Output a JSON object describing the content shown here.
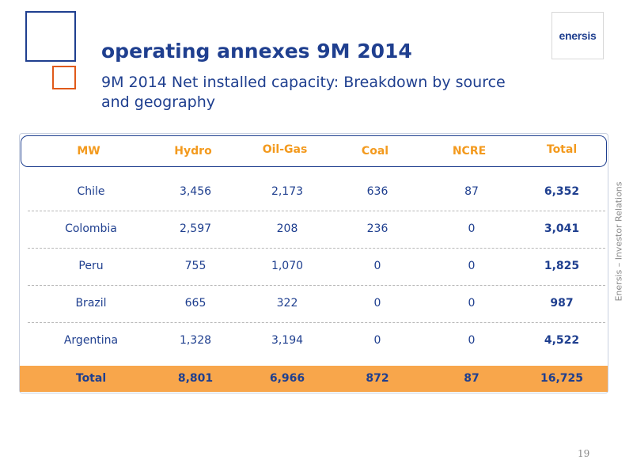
{
  "logo": {
    "text": "enersis"
  },
  "header": {
    "title": "operating annexes 9M 2014",
    "subtitle": "9M 2014 Net installed capacity: Breakdown by source and geography"
  },
  "table": {
    "columns": [
      "MW",
      "Hydro",
      "Oil-Gas",
      "Coal",
      "NCRE",
      "Total"
    ],
    "rows": [
      [
        "Chile",
        "3,456",
        "2,173",
        "636",
        "87",
        "6,352"
      ],
      [
        "Colombia",
        "2,597",
        "208",
        "236",
        "0",
        "3,041"
      ],
      [
        "Peru",
        "755",
        "1,070",
        "0",
        "0",
        "1,825"
      ],
      [
        "Brazil",
        "665",
        "322",
        "0",
        "0",
        "987"
      ],
      [
        "Argentina",
        "1,328",
        "3,194",
        "0",
        "0",
        "4,522"
      ]
    ],
    "total": [
      "Total",
      "8,801",
      "6,966",
      "872",
      "87",
      "16,725"
    ]
  },
  "sidebar_text": "Enersis – Investor Relations",
  "page_number": "19",
  "colors": {
    "primary_blue": "#1f3f8f",
    "header_orange": "#f39a1e",
    "total_row_bg": "#f8a64b",
    "accent_square": "#e05a1a"
  }
}
